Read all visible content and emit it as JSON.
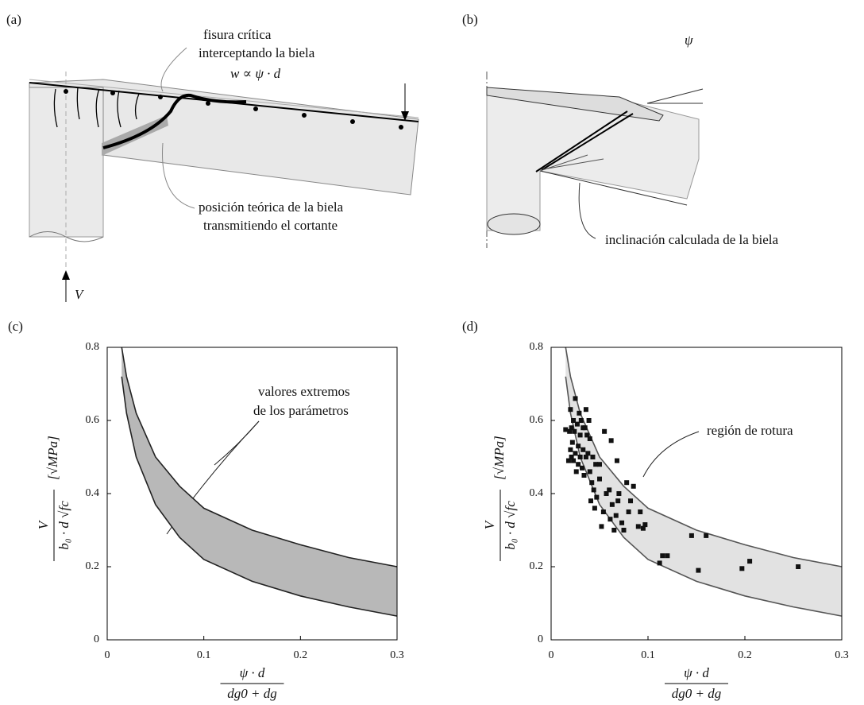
{
  "panels": {
    "a": {
      "label": "(a)",
      "crack_title": "fisura crítica",
      "crack_sub": "interceptando la biela",
      "crack_width": "w ∝ ψ · d",
      "strut_1": "posición teórica de la biela",
      "strut_2": "transmitiendo el cortante",
      "force": "V"
    },
    "b": {
      "label": "(b)",
      "angle": "ψ",
      "strut": "inclinación calculada de la biela"
    }
  },
  "chart_data": [
    {
      "type": "line",
      "panel_label": "(c)",
      "ylabel": {
        "numerator": "V",
        "denominator": "b₀ · d √fc",
        "unit": "[√MPa]"
      },
      "xlabel": {
        "numerator": "ψ · d",
        "denominator": "dg0 + dg"
      },
      "annotation": [
        "valores extremos",
        "de los parámetros"
      ],
      "xlim": [
        0,
        0.3
      ],
      "ylim": [
        0,
        0.8
      ],
      "xticks": [
        0,
        0.1,
        0.2,
        0.3
      ],
      "yticks": [
        0,
        0.2,
        0.4,
        0.6,
        0.8
      ],
      "x": [
        0.015,
        0.02,
        0.03,
        0.05,
        0.075,
        0.1,
        0.15,
        0.2,
        0.25,
        0.3
      ],
      "band_color": "#b8b8b8",
      "series": [
        {
          "color": "#222222",
          "values": [
            0.8,
            0.72,
            0.62,
            0.5,
            0.42,
            0.36,
            0.3,
            0.26,
            0.225,
            0.2
          ]
        },
        {
          "color": "#222222",
          "values": [
            0.72,
            0.62,
            0.5,
            0.37,
            0.28,
            0.22,
            0.16,
            0.12,
            0.09,
            0.065
          ]
        }
      ]
    },
    {
      "type": "scatter",
      "panel_label": "(d)",
      "ylabel": {
        "numerator": "V",
        "denominator": "b₀ · d √fc",
        "unit": "[√MPa]"
      },
      "xlabel": {
        "numerator": "ψ · d",
        "denominator": "dg0 + dg"
      },
      "annotation": [
        "región de rotura"
      ],
      "xlim": [
        0,
        0.3
      ],
      "ylim": [
        0,
        0.8
      ],
      "xticks": [
        0,
        0.1,
        0.2,
        0.3
      ],
      "yticks": [
        0,
        0.2,
        0.4,
        0.6,
        0.8
      ],
      "x": [
        0.015,
        0.02,
        0.03,
        0.05,
        0.075,
        0.1,
        0.15,
        0.2,
        0.25,
        0.3
      ],
      "band_color": "#e2e2e2",
      "series": [
        {
          "color": "#555555",
          "values": [
            0.8,
            0.72,
            0.62,
            0.5,
            0.42,
            0.36,
            0.3,
            0.26,
            0.225,
            0.2
          ]
        },
        {
          "color": "#555555",
          "values": [
            0.72,
            0.62,
            0.5,
            0.37,
            0.28,
            0.22,
            0.16,
            0.12,
            0.09,
            0.065
          ]
        }
      ],
      "points": {
        "color": "#111111",
        "x": [
          0.255,
          0.205,
          0.197,
          0.16,
          0.152,
          0.145,
          0.12,
          0.115,
          0.112,
          0.097,
          0.095,
          0.092,
          0.09,
          0.085,
          0.082,
          0.08,
          0.078,
          0.075,
          0.073,
          0.07,
          0.069,
          0.068,
          0.067,
          0.065,
          0.063,
          0.061,
          0.06,
          0.057,
          0.055,
          0.054,
          0.052,
          0.05,
          0.05,
          0.047,
          0.046,
          0.045,
          0.044,
          0.043,
          0.042,
          0.041,
          0.04,
          0.04,
          0.039,
          0.038,
          0.037,
          0.036,
          0.036,
          0.035,
          0.034,
          0.033,
          0.033,
          0.032,
          0.031,
          0.03,
          0.03,
          0.029,
          0.028,
          0.028,
          0.027,
          0.026,
          0.025,
          0.025,
          0.024,
          0.023,
          0.023,
          0.022,
          0.021,
          0.021,
          0.02,
          0.02,
          0.019,
          0.018,
          0.062,
          0.015
        ],
        "y": [
          0.2,
          0.215,
          0.195,
          0.285,
          0.19,
          0.285,
          0.23,
          0.23,
          0.21,
          0.315,
          0.305,
          0.35,
          0.31,
          0.42,
          0.38,
          0.35,
          0.43,
          0.3,
          0.32,
          0.4,
          0.38,
          0.49,
          0.34,
          0.3,
          0.37,
          0.33,
          0.41,
          0.4,
          0.57,
          0.35,
          0.31,
          0.48,
          0.44,
          0.39,
          0.48,
          0.36,
          0.41,
          0.5,
          0.43,
          0.38,
          0.46,
          0.55,
          0.6,
          0.51,
          0.56,
          0.63,
          0.5,
          0.58,
          0.45,
          0.52,
          0.58,
          0.47,
          0.6,
          0.5,
          0.56,
          0.62,
          0.48,
          0.53,
          0.59,
          0.46,
          0.66,
          0.51,
          0.57,
          0.49,
          0.6,
          0.54,
          0.5,
          0.58,
          0.63,
          0.52,
          0.57,
          0.49,
          0.545,
          0.575
        ]
      }
    }
  ]
}
